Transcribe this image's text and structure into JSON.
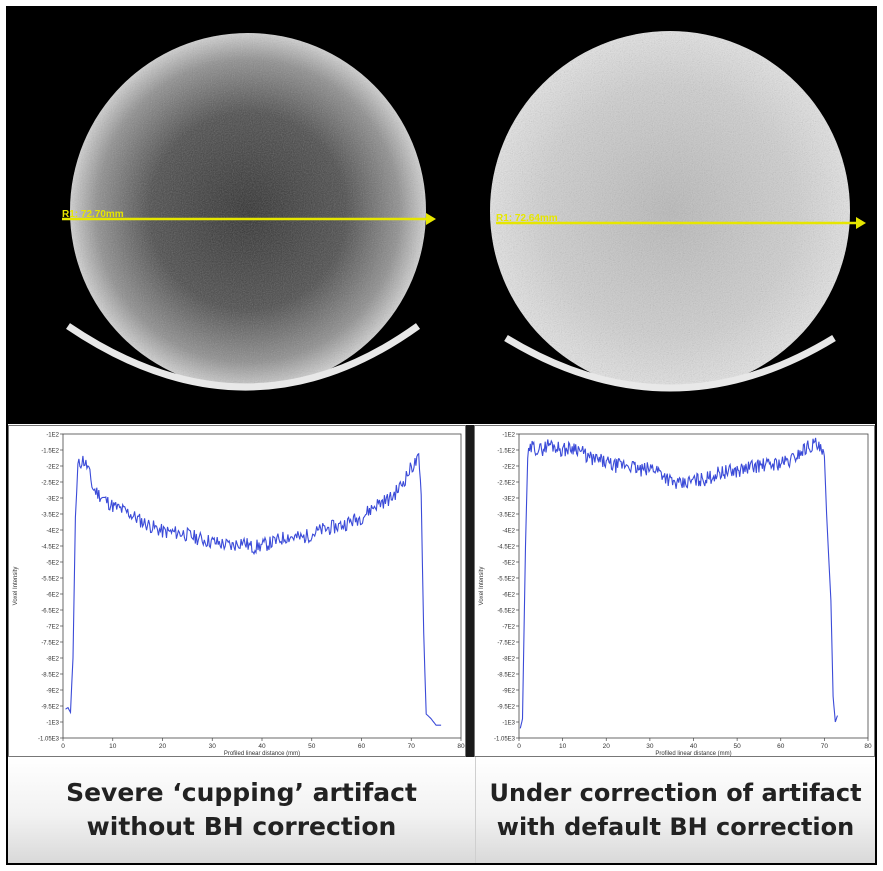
{
  "colors": {
    "profile_line": "#3b4bd8",
    "measure_line": "#e6e600",
    "background": "#000000"
  },
  "panels": [
    {
      "id": "left",
      "measure_label": "R1: 72.70mm",
      "caption_line1": "Severe ‘cupping’ artifact",
      "caption_line2": "without BH correction"
    },
    {
      "id": "right",
      "measure_label": "R1: 72.64mm",
      "caption_line1": "Under correction of artifact",
      "caption_line2": "with default BH correction"
    }
  ],
  "chart_data": [
    {
      "type": "line",
      "xlabel": "Profiled linear distance (mm)",
      "ylabel": "Voxel Intensity",
      "xlim": [
        0,
        80
      ],
      "ylim": [
        -1050,
        -100
      ],
      "xticks": [
        0,
        10,
        20,
        30,
        40,
        50,
        60,
        70,
        80
      ],
      "yticks": [
        "-1E2",
        "-1.5E2",
        "-2E2",
        "-2.5E2",
        "-3E2",
        "-3.5E2",
        "-4E2",
        "-4.5E2",
        "-5E2",
        "-5.5E2",
        "-6E2",
        "-6.5E2",
        "-7E2",
        "-7.5E2",
        "-8E2",
        "-8.5E2",
        "-9E2",
        "-9.5E2",
        "-1E3",
        "-1.05E3"
      ],
      "x": [
        0.5,
        1.0,
        1.5,
        2.0,
        2.5,
        3.0,
        4.0,
        5.0,
        6.0,
        8.0,
        10.0,
        13.0,
        16.0,
        20.0,
        24.0,
        28.0,
        31.0,
        34.0,
        36.0,
        38.0,
        40.0,
        42.0,
        45.0,
        48.0,
        52.0,
        56.0,
        60.0,
        63.0,
        66.0,
        68.0,
        70.0,
        71.5,
        72.0,
        72.5,
        73.0,
        74.0,
        75.0,
        76.0
      ],
      "y": [
        -960,
        -955,
        -970,
        -800,
        -360,
        -200,
        -180,
        -205,
        -270,
        -300,
        -325,
        -345,
        -375,
        -405,
        -410,
        -430,
        -440,
        -450,
        -435,
        -455,
        -448,
        -440,
        -420,
        -425,
        -400,
        -385,
        -360,
        -320,
        -300,
        -260,
        -205,
        -180,
        -290,
        -720,
        -975,
        -990,
        -1010,
        -1010
      ]
    },
    {
      "type": "line",
      "xlabel": "Profiled linear distance (mm)",
      "ylabel": "Voxel Intensity",
      "xlim": [
        0,
        80
      ],
      "ylim": [
        -1050,
        -100
      ],
      "xticks": [
        0,
        10,
        20,
        30,
        40,
        50,
        60,
        70,
        80
      ],
      "yticks": [
        "-1E2",
        "-1.5E2",
        "-2E2",
        "-2.5E2",
        "-3E2",
        "-3.5E2",
        "-4E2",
        "-4.5E2",
        "-5E2",
        "-5.5E2",
        "-6E2",
        "-6.5E2",
        "-7E2",
        "-7.5E2",
        "-8E2",
        "-8.5E2",
        "-9E2",
        "-9.5E2",
        "-1E3",
        "-1.05E3"
      ],
      "x": [
        0.3,
        0.8,
        1.5,
        2.0,
        3.0,
        5.0,
        7.0,
        10.0,
        13.0,
        16.0,
        19.0,
        22.0,
        25.0,
        28.0,
        31.0,
        33.0,
        35.0,
        37.0,
        40.0,
        43.0,
        46.0,
        50.0,
        54.0,
        58.0,
        62.0,
        66.0,
        68.0,
        69.5,
        70.0,
        70.5,
        71.5,
        72.0,
        72.5,
        73.0
      ],
      "y": [
        -1020,
        -990,
        -450,
        -170,
        -140,
        -150,
        -130,
        -150,
        -140,
        -175,
        -185,
        -200,
        -195,
        -215,
        -205,
        -225,
        -250,
        -260,
        -245,
        -240,
        -220,
        -215,
        -200,
        -195,
        -185,
        -140,
        -130,
        -160,
        -170,
        -350,
        -620,
        -920,
        -1000,
        -980
      ]
    }
  ]
}
